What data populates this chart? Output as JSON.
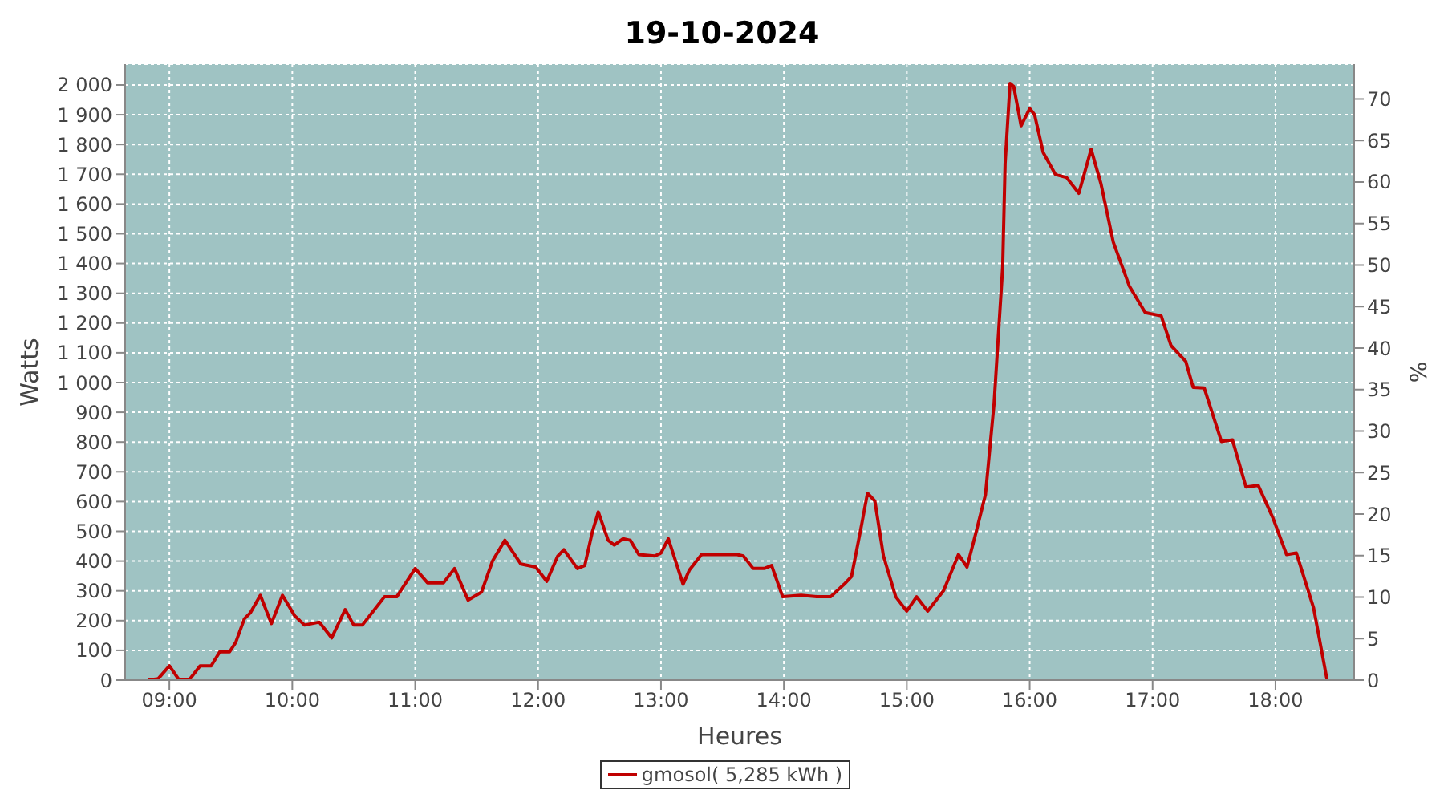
{
  "chart_data": {
    "type": "line",
    "title": "19-10-2024",
    "xlabel": "Heures",
    "ylabel": "Watts",
    "y2label": "%",
    "x": [
      8.83,
      8.91,
      9.0,
      9.08,
      9.16,
      9.25,
      9.34,
      9.41,
      9.49,
      9.54,
      9.61,
      9.66,
      9.74,
      9.83,
      9.92,
      10.02,
      10.1,
      10.22,
      10.32,
      10.43,
      10.5,
      10.57,
      10.75,
      10.85,
      11.0,
      11.1,
      11.23,
      11.32,
      11.43,
      11.54,
      11.63,
      11.73,
      11.86,
      11.98,
      12.07,
      12.16,
      12.21,
      12.32,
      12.38,
      12.44,
      12.49,
      12.57,
      12.62,
      12.69,
      12.75,
      12.82,
      12.95,
      13.0,
      13.06,
      13.18,
      13.23,
      13.33,
      13.62,
      13.67,
      13.75,
      13.84,
      13.9,
      13.99,
      14.14,
      14.27,
      14.38,
      14.49,
      14.55,
      14.63,
      14.68,
      14.74,
      14.81,
      14.91,
      15.0,
      15.08,
      15.17,
      15.3,
      15.42,
      15.49,
      15.56,
      15.64,
      15.71,
      15.78,
      15.8,
      15.84,
      15.87,
      15.93,
      16.0,
      16.04,
      16.11,
      16.21,
      16.3,
      16.4,
      16.5,
      16.58,
      16.68,
      16.81,
      16.94,
      17.07,
      17.15,
      17.27,
      17.33,
      17.42,
      17.56,
      17.65,
      17.76,
      17.86,
      17.98,
      18.09,
      18.17,
      18.31,
      18.42
    ],
    "series": [
      {
        "name": "gmosol( 5,285 kWh )",
        "color": "#c00000",
        "values": [
          0,
          5,
          48,
          0,
          0,
          48,
          48,
          95,
          95,
          127,
          206,
          227,
          285,
          190,
          285,
          216,
          185,
          195,
          142,
          237,
          185,
          185,
          280,
          280,
          375,
          327,
          327,
          375,
          269,
          296,
          401,
          470,
          390,
          380,
          332,
          417,
          438,
          375,
          385,
          496,
          565,
          470,
          454,
          475,
          470,
          422,
          417,
          427,
          475,
          322,
          369,
          422,
          422,
          417,
          375,
          375,
          385,
          280,
          285,
          280,
          280,
          322,
          348,
          517,
          628,
          602,
          417,
          280,
          232,
          280,
          232,
          301,
          422,
          380,
          491,
          623,
          929,
          1388,
          1736,
          2005,
          1995,
          1863,
          1921,
          1900,
          1773,
          1699,
          1689,
          1636,
          1784,
          1668,
          1472,
          1325,
          1235,
          1224,
          1124,
          1071,
          984,
          982,
          802,
          807,
          649,
          654,
          544,
          422,
          427,
          243,
          0
        ]
      }
    ],
    "xlim": [
      8.64,
      18.64
    ],
    "xticks": [
      {
        "value": 9,
        "label": "09:00"
      },
      {
        "value": 10,
        "label": "10:00"
      },
      {
        "value": 11,
        "label": "11:00"
      },
      {
        "value": 12,
        "label": "12:00"
      },
      {
        "value": 13,
        "label": "13:00"
      },
      {
        "value": 14,
        "label": "14:00"
      },
      {
        "value": 15,
        "label": "15:00"
      },
      {
        "value": 16,
        "label": "16:00"
      },
      {
        "value": 17,
        "label": "17:00"
      },
      {
        "value": 18,
        "label": "18:00"
      }
    ],
    "ylim": [
      0,
      2070
    ],
    "yticks": [
      0,
      100,
      200,
      300,
      400,
      500,
      600,
      700,
      800,
      900,
      {
        "value": 1000,
        "label": "1 000"
      },
      {
        "value": 1100,
        "label": "1 100"
      },
      {
        "value": 1200,
        "label": "1 200"
      },
      {
        "value": 1300,
        "label": "1 300"
      },
      {
        "value": 1400,
        "label": "1 400"
      },
      {
        "value": 1500,
        "label": "1 500"
      },
      {
        "value": 1600,
        "label": "1 600"
      },
      {
        "value": 1700,
        "label": "1 700"
      },
      {
        "value": 1800,
        "label": "1 800"
      },
      {
        "value": 1900,
        "label": "1 900"
      },
      {
        "value": 2000,
        "label": "2 000"
      }
    ],
    "y2lim": [
      0,
      74.2
    ],
    "y2ticks": [
      0,
      5,
      10,
      15,
      20,
      25,
      30,
      35,
      40,
      45,
      50,
      55,
      60,
      65,
      70
    ],
    "grid": true,
    "legend": "bottom",
    "marker": "none",
    "line_style": "solid"
  }
}
